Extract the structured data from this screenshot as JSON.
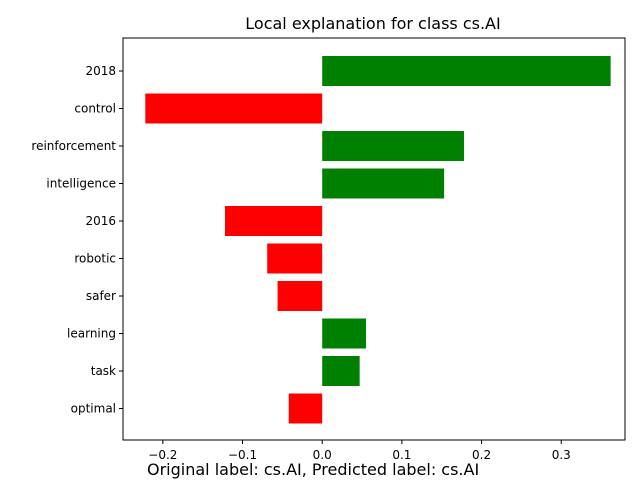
{
  "chart_data": {
    "type": "bar",
    "orientation": "horizontal",
    "title": "Local explanation for class cs.AI",
    "xlabel": "",
    "ylabel": "",
    "categories": [
      "2018",
      "control",
      "reinforcement",
      "intelligence",
      "2016",
      "robotic",
      "safer",
      "learning",
      "task",
      "optimal"
    ],
    "values": [
      0.362,
      -0.222,
      0.178,
      0.153,
      -0.122,
      -0.069,
      -0.056,
      0.055,
      0.047,
      -0.042
    ],
    "xlim": [
      -0.25,
      0.38
    ],
    "xticks": [
      -0.2,
      -0.1,
      0.0,
      0.1,
      0.2,
      0.3
    ],
    "xtick_labels": [
      "−0.2",
      "−0.1",
      "0.0",
      "0.1",
      "0.2",
      "0.3"
    ],
    "positive_color": "#008000",
    "negative_color": "#ff0000",
    "grid": false,
    "caption": "Original label: cs.AI, Predicted label: cs.AI"
  }
}
